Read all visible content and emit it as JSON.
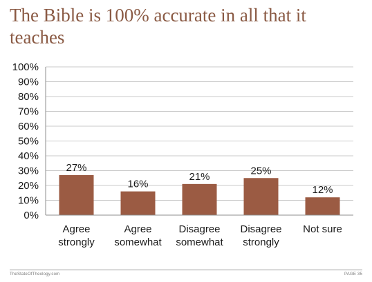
{
  "title": "The Bible is 100% accurate in all that it teaches",
  "colors": {
    "bar": "#9b5b43",
    "title": "#8a5a44",
    "grid": "#c8c8c8",
    "axis": "#8c8c8c"
  },
  "chart_data": {
    "type": "bar",
    "categories": [
      [
        "Agree",
        "strongly"
      ],
      [
        "Agree",
        "somewhat"
      ],
      [
        "Disagree",
        "somewhat"
      ],
      [
        "Disagree",
        "strongly"
      ],
      [
        "Not sure"
      ]
    ],
    "values": [
      27,
      16,
      21,
      25,
      12
    ],
    "value_labels": [
      "27%",
      "16%",
      "21%",
      "25%",
      "12%"
    ],
    "ylim": [
      0,
      100
    ],
    "yticks": [
      "0%",
      "10%",
      "20%",
      "30%",
      "40%",
      "50%",
      "60%",
      "70%",
      "80%",
      "90%",
      "100%"
    ],
    "grid": true,
    "legend": "none"
  },
  "footer": {
    "left": "TheStateOfTheology.com",
    "right": "PAGE 35"
  }
}
